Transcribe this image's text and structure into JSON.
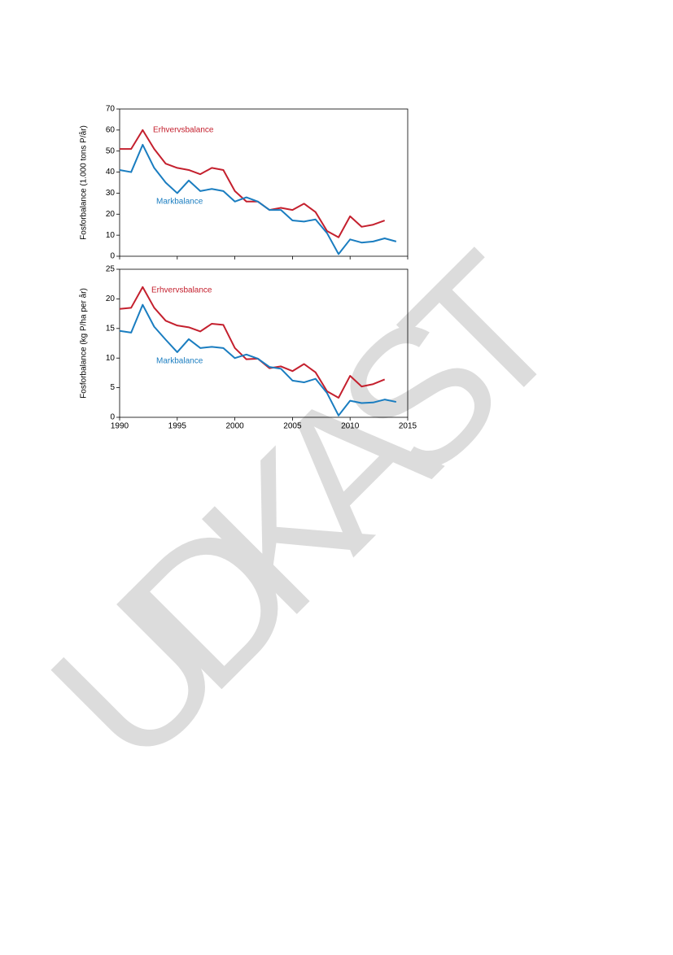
{
  "watermark": "UDKAST",
  "chart_data": [
    {
      "type": "line",
      "y_label": "Fosforbalance (1.000 tons P/år)",
      "x": [
        1990,
        1991,
        1992,
        1993,
        1994,
        1995,
        1996,
        1997,
        1998,
        1999,
        2000,
        2001,
        2002,
        2003,
        2004,
        2005,
        2006,
        2007,
        2008,
        2009,
        2010,
        2011,
        2012,
        2013,
        2014
      ],
      "xlim": [
        1990,
        2015
      ],
      "xticks": [
        1990,
        1995,
        2000,
        2005,
        2010,
        2015
      ],
      "ylim": [
        0,
        70
      ],
      "yticks": [
        0,
        10,
        20,
        30,
        40,
        50,
        60,
        70
      ],
      "series": [
        {
          "name": "Erhvervsbalance",
          "color": "#c4202e",
          "values": [
            51,
            51,
            60,
            51,
            44,
            42,
            41,
            39,
            42,
            41,
            31,
            26,
            26,
            22,
            23,
            22,
            25,
            21,
            12,
            9,
            19,
            14,
            15,
            17,
            null
          ]
        },
        {
          "name": "Markbalance",
          "color": "#1a7dc0",
          "values": [
            41,
            40,
            53,
            42,
            35,
            30,
            36,
            31,
            32,
            31,
            26,
            28,
            26,
            22,
            22,
            17,
            16.5,
            17.5,
            11,
            1,
            8,
            6.5,
            7,
            8.5,
            7
          ]
        }
      ]
    },
    {
      "type": "line",
      "y_label": "Fosforbalance (kg P/ha per år)",
      "x": [
        1990,
        1991,
        1992,
        1993,
        1994,
        1995,
        1996,
        1997,
        1998,
        1999,
        2000,
        2001,
        2002,
        2003,
        2004,
        2005,
        2006,
        2007,
        2008,
        2009,
        2010,
        2011,
        2012,
        2013,
        2014
      ],
      "xlim": [
        1990,
        2015
      ],
      "xticks": [
        1990,
        1995,
        2000,
        2005,
        2010,
        2015
      ],
      "ylim": [
        0,
        25
      ],
      "yticks": [
        0,
        5,
        10,
        15,
        20,
        25
      ],
      "series": [
        {
          "name": "Erhvervsbalance",
          "color": "#c4202e",
          "values": [
            18.3,
            18.5,
            22,
            18.5,
            16.3,
            15.5,
            15.2,
            14.5,
            15.8,
            15.6,
            11.7,
            9.8,
            9.9,
            8.3,
            8.6,
            7.8,
            9.0,
            7.6,
            4.4,
            3.3,
            7.0,
            5.2,
            5.6,
            6.4,
            null
          ]
        },
        {
          "name": "Markbalance",
          "color": "#1a7dc0",
          "values": [
            14.6,
            14.3,
            19,
            15.3,
            13.1,
            11,
            13.2,
            11.7,
            11.9,
            11.7,
            10,
            10.6,
            9.9,
            8.5,
            8.2,
            6.2,
            5.9,
            6.5,
            4.1,
            0.3,
            2.8,
            2.4,
            2.5,
            3,
            2.6
          ]
        }
      ]
    }
  ]
}
